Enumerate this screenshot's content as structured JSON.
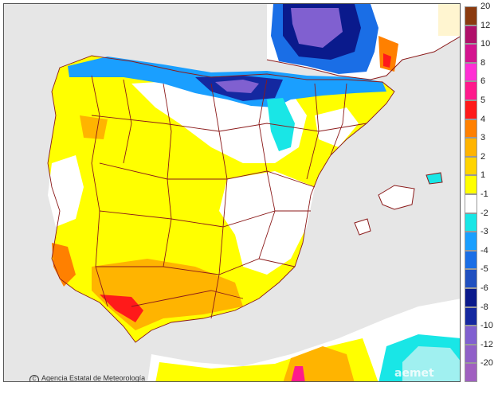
{
  "credit": "Agencia Estatal de Meteorología",
  "watermark": "aemet",
  "legend": [
    {
      "label": "20",
      "color": "#8b3a0f"
    },
    {
      "label": "12",
      "color": "#b0106a"
    },
    {
      "label": "10",
      "color": "#d4148f"
    },
    {
      "label": "8",
      "color": "#ff2fd4"
    },
    {
      "label": "6",
      "color": "#ff1a8c"
    },
    {
      "label": "5",
      "color": "#ff1a1a"
    },
    {
      "label": "4",
      "color": "#ff8000"
    },
    {
      "label": "3",
      "color": "#ffb400"
    },
    {
      "label": "2",
      "color": "#ffd400"
    },
    {
      "label": "1",
      "color": "#ffff00"
    },
    {
      "label": "-1",
      "color": "#ffffff"
    },
    {
      "label": "-2",
      "color": "#19e6e6"
    },
    {
      "label": "-3",
      "color": "#1a9fff"
    },
    {
      "label": "-4",
      "color": "#1a6ee6"
    },
    {
      "label": "-5",
      "color": "#2050c0"
    },
    {
      "label": "-6",
      "color": "#0a1a8c"
    },
    {
      "label": "-8",
      "color": "#1428a0"
    },
    {
      "label": "-10",
      "color": "#8060d0"
    },
    {
      "label": "-12",
      "color": "#9060c8"
    },
    {
      "label": "-20",
      "color": "#a060c0"
    }
  ]
}
